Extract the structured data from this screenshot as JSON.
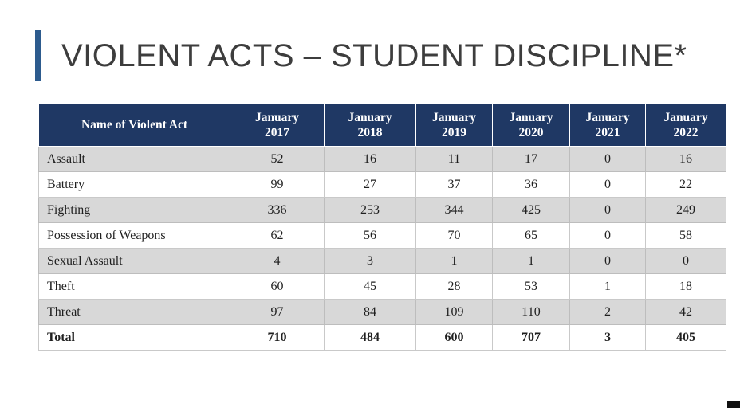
{
  "slide": {
    "title": "VIOLENT ACTS – STUDENT DISCIPLINE*"
  },
  "colors": {
    "accent_bar": "#2D5B8E",
    "header_bg": "#1F3864",
    "header_text": "#FFFFFF",
    "stripe_row": "#D8D8D8",
    "title_text": "#3D3D3D"
  },
  "table": {
    "columns": [
      {
        "line1": "Name of Violent Act",
        "line2": ""
      },
      {
        "line1": "January",
        "line2": "2017"
      },
      {
        "line1": "January",
        "line2": "2018"
      },
      {
        "line1": "January",
        "line2": "2019"
      },
      {
        "line1": "January",
        "line2": "2020"
      },
      {
        "line1": "January",
        "line2": "2021"
      },
      {
        "line1": "January",
        "line2": "2022"
      }
    ],
    "rows": [
      {
        "name": "Assault",
        "values": [
          "52",
          "16",
          "11",
          "17",
          "0",
          "16"
        ],
        "bold": false
      },
      {
        "name": "Battery",
        "values": [
          "99",
          "27",
          "37",
          "36",
          "0",
          "22"
        ],
        "bold": false
      },
      {
        "name": "Fighting",
        "values": [
          "336",
          "253",
          "344",
          "425",
          "0",
          "249"
        ],
        "bold": false
      },
      {
        "name": "Possession of Weapons",
        "values": [
          "62",
          "56",
          "70",
          "65",
          "0",
          "58"
        ],
        "bold": false
      },
      {
        "name": "Sexual Assault",
        "values": [
          "4",
          "3",
          "1",
          "1",
          "0",
          "0"
        ],
        "bold": false
      },
      {
        "name": "Theft",
        "values": [
          "60",
          "45",
          "28",
          "53",
          "1",
          "18"
        ],
        "bold": false
      },
      {
        "name": "Threat",
        "values": [
          "97",
          "84",
          "109",
          "110",
          "2",
          "42"
        ],
        "bold": false
      },
      {
        "name": "Total",
        "values": [
          "710",
          "484",
          "600",
          "707",
          "3",
          "405"
        ],
        "bold": true
      }
    ]
  },
  "chart_data": {
    "type": "table",
    "title": "VIOLENT ACTS – STUDENT DISCIPLINE*",
    "columns": [
      "Name of Violent Act",
      "January 2017",
      "January 2018",
      "January 2019",
      "January 2020",
      "January 2021",
      "January 2022"
    ],
    "rows": [
      [
        "Assault",
        52,
        16,
        11,
        17,
        0,
        16
      ],
      [
        "Battery",
        99,
        27,
        37,
        36,
        0,
        22
      ],
      [
        "Fighting",
        336,
        253,
        344,
        425,
        0,
        249
      ],
      [
        "Possession of Weapons",
        62,
        56,
        70,
        65,
        0,
        58
      ],
      [
        "Sexual Assault",
        4,
        3,
        1,
        1,
        0,
        0
      ],
      [
        "Theft",
        60,
        45,
        28,
        53,
        1,
        18
      ],
      [
        "Threat",
        97,
        84,
        109,
        110,
        2,
        42
      ],
      [
        "Total",
        710,
        484,
        600,
        707,
        3,
        405
      ]
    ]
  }
}
